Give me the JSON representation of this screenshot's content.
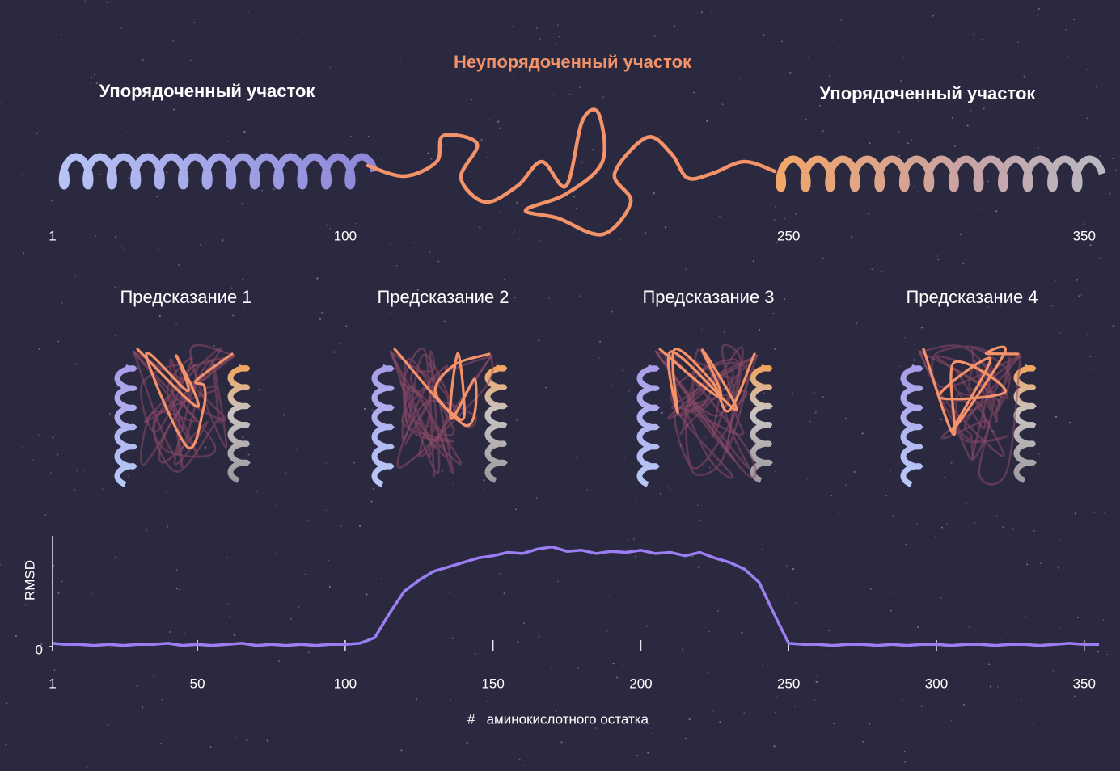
{
  "header": {
    "disordered_label": "Неупорядоченный участок",
    "ordered_left": "Упорядоченный участок",
    "ordered_right": "Упорядоченный участок"
  },
  "residue_markers": [
    1,
    100,
    250,
    350
  ],
  "predictions": [
    "Предсказание 1",
    "Предсказание 2",
    "Предсказание 3",
    "Предсказание 4"
  ],
  "chart_data": {
    "type": "line",
    "ylabel": "RMSD",
    "xlabel": "#   аминокислотного остатка",
    "x": [
      1,
      5,
      10,
      15,
      20,
      25,
      30,
      35,
      40,
      45,
      50,
      55,
      60,
      65,
      70,
      75,
      80,
      85,
      90,
      95,
      100,
      105,
      110,
      115,
      120,
      125,
      130,
      135,
      140,
      145,
      150,
      155,
      160,
      165,
      170,
      175,
      180,
      185,
      190,
      195,
      200,
      205,
      210,
      215,
      220,
      225,
      230,
      235,
      240,
      245,
      250,
      255,
      260,
      265,
      270,
      275,
      280,
      285,
      290,
      295,
      300,
      305,
      310,
      315,
      320,
      325,
      330,
      335,
      340,
      345,
      350,
      355
    ],
    "series": [
      {
        "color": "#9b7ef2",
        "values": [
          0.03,
          0.02,
          0.02,
          0.01,
          0.02,
          0.01,
          0.02,
          0.02,
          0.03,
          0.01,
          0.02,
          0.01,
          0.02,
          0.03,
          0.01,
          0.02,
          0.01,
          0.02,
          0.01,
          0.02,
          0.02,
          0.03,
          0.08,
          0.3,
          0.5,
          0.6,
          0.68,
          0.72,
          0.76,
          0.8,
          0.82,
          0.85,
          0.84,
          0.88,
          0.9,
          0.86,
          0.87,
          0.84,
          0.86,
          0.85,
          0.87,
          0.84,
          0.85,
          0.82,
          0.85,
          0.8,
          0.76,
          0.7,
          0.58,
          0.3,
          0.03,
          0.02,
          0.02,
          0.01,
          0.02,
          0.02,
          0.01,
          0.02,
          0.01,
          0.02,
          0.02,
          0.01,
          0.02,
          0.02,
          0.01,
          0.02,
          0.02,
          0.01,
          0.02,
          0.03,
          0.02,
          0.02
        ]
      }
    ],
    "xlim": [
      1,
      358
    ],
    "xticks": [
      1,
      50,
      100,
      150,
      200,
      250,
      300,
      350
    ],
    "ylim": [
      0,
      1
    ],
    "yticks": [
      0
    ]
  }
}
